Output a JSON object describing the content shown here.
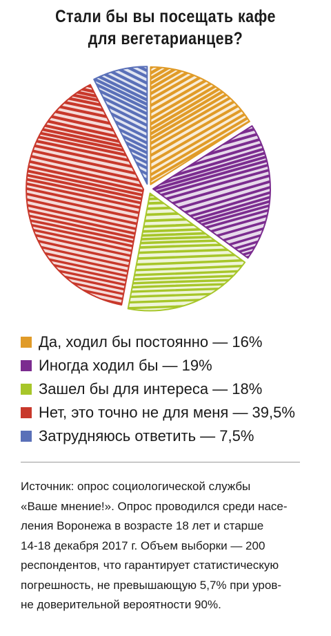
{
  "title_lines": [
    "Стали бы вы посещать кафе",
    "для вегетарианцев?"
  ],
  "legend": [
    {
      "label": "Да, ходил бы постоянно — 16%",
      "color": "#E09B28"
    },
    {
      "label": "Иногда ходил бы — 19%",
      "color": "#7B2C8F"
    },
    {
      "label": "Зашел бы для интереса — 18%",
      "color": "#A7C62A"
    },
    {
      "label": "Нет, это точно не для меня — 39,5%",
      "color": "#C8382B"
    },
    {
      "label": "Затрудняюсь ответить — 7,5%",
      "color": "#5A70B8"
    }
  ],
  "source_lines": [
    "Источник: опрос социологической службы",
    "«Ваше мнение!». Опрос проводился среди насе-",
    "ления Воронежа в возрасте 18 лет и старше",
    "14-18 декабря 2017 г. Объем выборки — 200",
    "респондентов, что гарантирует статистическую",
    "погрешность, не превышающую 5,7% при уров-",
    "не доверительной вероятности 90%."
  ],
  "chart_data": {
    "type": "pie",
    "title": "Стали бы вы посещать кафе для вегетарианцев?",
    "slices": [
      {
        "label": "Да, ходил бы постоянно",
        "value": 16,
        "color": "#E09B28"
      },
      {
        "label": "Иногда ходил бы",
        "value": 19,
        "color": "#7B2C8F"
      },
      {
        "label": "Зашел бы для интереса",
        "value": 18,
        "color": "#A7C62A"
      },
      {
        "label": "Нет, это точно не для меня",
        "value": 39.5,
        "color": "#C8382B"
      },
      {
        "label": "Затрудняюсь ответить",
        "value": 7.5,
        "color": "#5A70B8"
      }
    ],
    "start": "top",
    "direction": "clockwise",
    "legend_position": "bottom",
    "style": "hand-drawn hatch strokes, exploded slices"
  }
}
